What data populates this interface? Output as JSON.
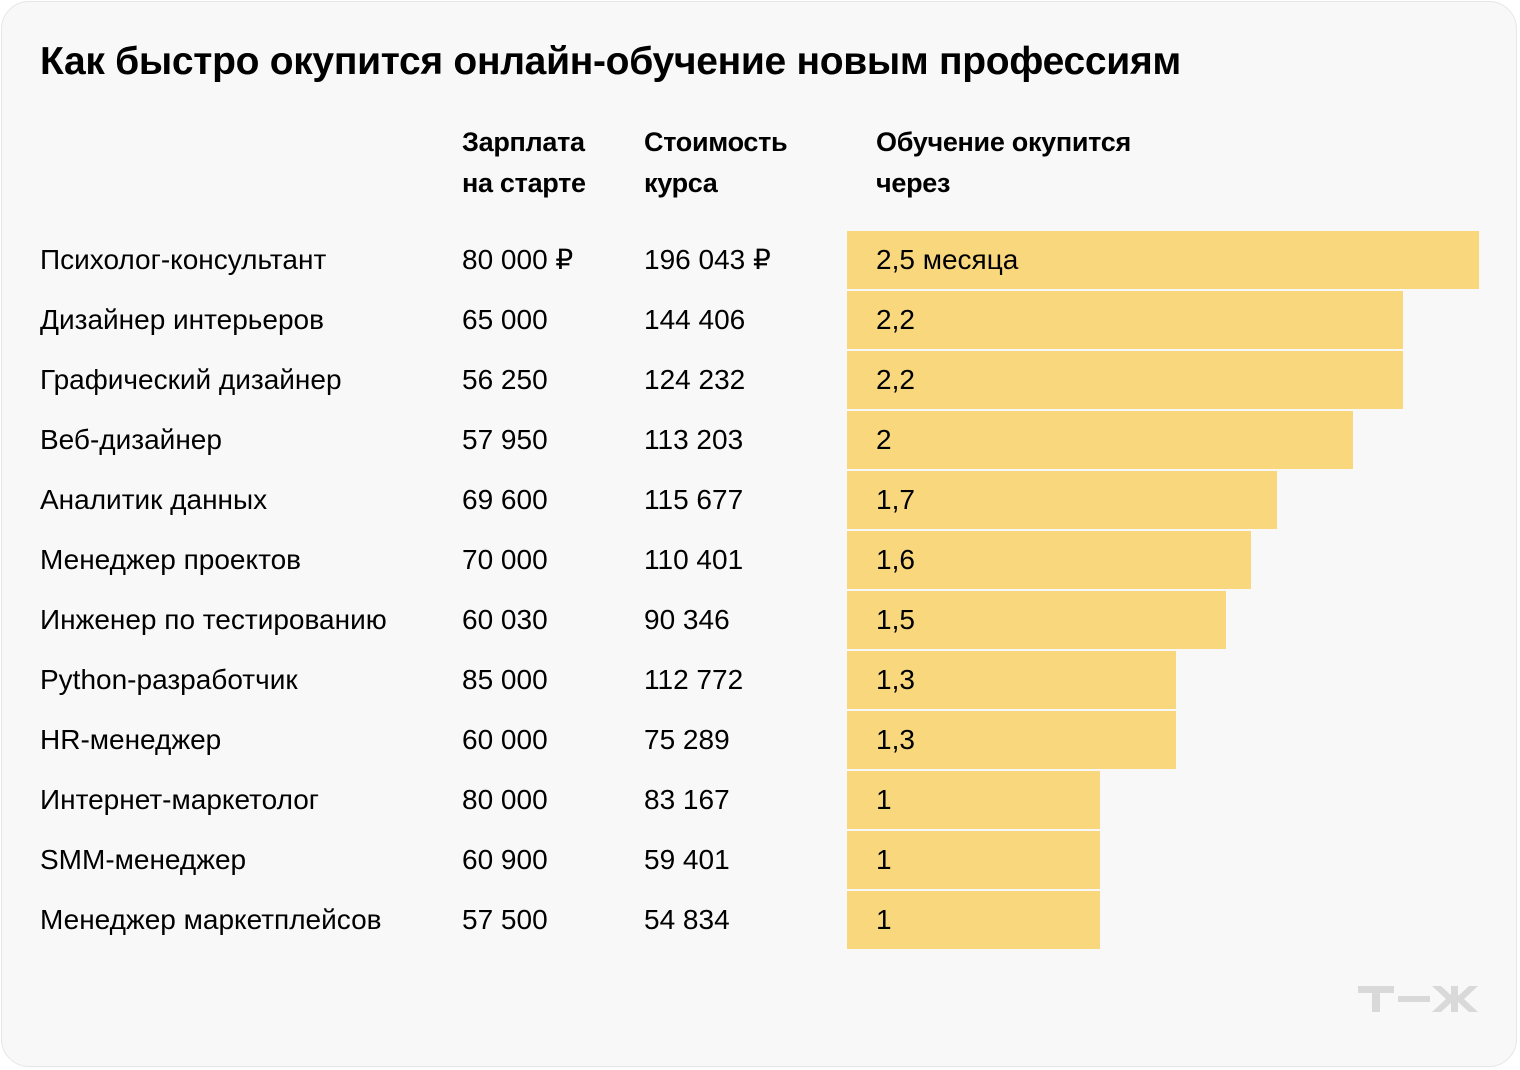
{
  "title": "Как быстро окупится онлайн-обучение новым профессиям",
  "headers": {
    "salary": [
      "Зарплата",
      "на старте"
    ],
    "cost": [
      "Стоимость",
      "курса"
    ],
    "payback": [
      "Обучение окупится",
      "через"
    ]
  },
  "colors": {
    "bar": "#f8d77d",
    "background": "#f8f8f8",
    "logo": "#d9d9d9"
  },
  "logo_text": "Т—Ж",
  "chart_data": {
    "type": "bar",
    "orientation": "horizontal",
    "title": "Как быстро окупится онлайн-обучение новым профессиям",
    "xlim": [
      0,
      2.5
    ],
    "unit": "месяца",
    "rows": [
      {
        "profession": "Психолог-консультант",
        "salary": "80 000 ₽",
        "cost": "196 043 ₽",
        "months": 2.5,
        "label": "2,5 месяца"
      },
      {
        "profession": "Дизайнер интерьеров",
        "salary": "65 000",
        "cost": "144 406",
        "months": 2.2,
        "label": "2,2"
      },
      {
        "profession": "Графический дизайнер",
        "salary": "56 250",
        "cost": "124 232",
        "months": 2.2,
        "label": "2,2"
      },
      {
        "profession": "Веб-дизайнер",
        "salary": "57 950",
        "cost": "113 203",
        "months": 2,
        "label": "2"
      },
      {
        "profession": "Аналитик данных",
        "salary": "69 600",
        "cost": "115 677",
        "months": 1.7,
        "label": "1,7"
      },
      {
        "profession": "Менеджер проектов",
        "salary": "70 000",
        "cost": "110 401",
        "months": 1.6,
        "label": "1,6"
      },
      {
        "profession": "Инженер по тестированию",
        "salary": "60 030",
        "cost": "90 346",
        "months": 1.5,
        "label": "1,5"
      },
      {
        "profession": "Python-разработчик",
        "salary": "85 000",
        "cost": "112 772",
        "months": 1.3,
        "label": "1,3"
      },
      {
        "profession": "HR-менеджер",
        "salary": "60 000",
        "cost": "75 289",
        "months": 1.3,
        "label": "1,3"
      },
      {
        "profession": "Интернет-маркетолог",
        "salary": "80 000",
        "cost": "83 167",
        "months": 1,
        "label": "1"
      },
      {
        "profession": "SMM-менеджер",
        "salary": "60 900",
        "cost": "59 401",
        "months": 1,
        "label": "1"
      },
      {
        "profession": "Менеджер маркетплейсов",
        "salary": "57 500",
        "cost": "54 834",
        "months": 1,
        "label": "1"
      }
    ]
  }
}
